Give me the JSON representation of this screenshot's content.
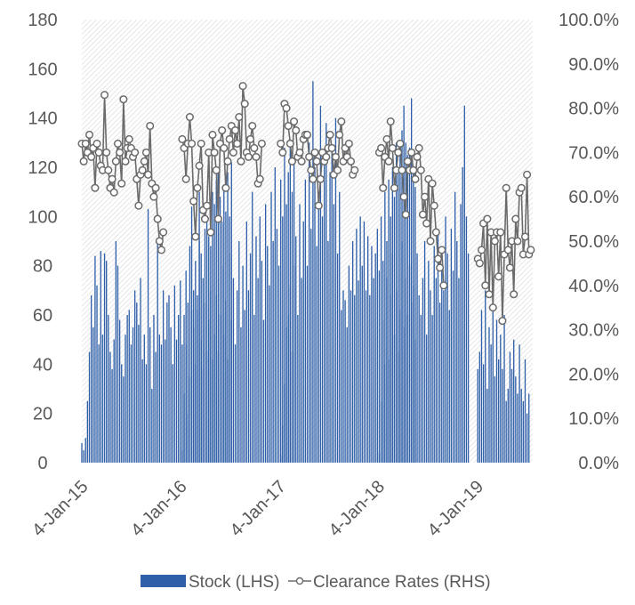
{
  "chart_data": {
    "type": "bar+line",
    "title": "",
    "x_tick_labels": [
      "4-Jan-15",
      "4-Jan-16",
      "4-Jan-17",
      "4-Jan-18",
      "4-Jan-19"
    ],
    "x_range": [
      "2015-01-04",
      "2019-07-28"
    ],
    "y_left": {
      "min": 0,
      "max": 180,
      "step": 20,
      "ticks": [
        "0",
        "20",
        "40",
        "60",
        "80",
        "100",
        "120",
        "140",
        "160",
        "180"
      ]
    },
    "y_right": {
      "min": 0,
      "max": 1.0,
      "step": 0.1,
      "ticks": [
        "0.0%",
        "10.0%",
        "20.0%",
        "30.0%",
        "40.0%",
        "50.0%",
        "60.0%",
        "70.0%",
        "80.0%",
        "90.0%",
        "100.0%"
      ]
    },
    "legend": {
      "placement": "bottom",
      "stock_label": "Stock (LHS)",
      "clearance_label": "Clearance Rates (RHS)"
    },
    "colors": {
      "stock": "#2e5fa8",
      "clearance_line": "#6b6b6b",
      "marker_fill": "#ffffff",
      "marker_stroke": "#6b6b6b",
      "hatch": "#d7d7d7",
      "tick_text": "#595959"
    },
    "series": [
      {
        "name": "Stock (LHS)",
        "axis": "left",
        "type": "bar",
        "segments": [
          {
            "start": "2015-01-04",
            "values": [
              8,
              5,
              10,
              25,
              45,
              68,
              55,
              84,
              72,
              48,
              86,
              52,
              85,
              82,
              60,
              45,
              38,
              50,
              90,
              80,
              58,
              40,
              35,
              52,
              60,
              62,
              48,
              55,
              70,
              65,
              56,
              75,
              42,
              52,
              40,
              103,
              55,
              30,
              60,
              45,
              90,
              52,
              48,
              70,
              50,
              65,
              68,
              55,
              40,
              72,
              50,
              60,
              74,
              48,
              60,
              78,
              65,
              88,
              62,
              70,
              82,
              68,
              90,
              85,
              75,
              95,
              100,
              92,
              88,
              110,
              105,
              115,
              120,
              108,
              98,
              112,
              102,
              118,
              100,
              122
            ]
          },
          {
            "start": "2016-01-10",
            "values": [
              5,
              28,
              48,
              20,
              35,
              104,
              55,
              40,
              62,
              110,
              50,
              38,
              65,
              45,
              58,
              70,
              42,
              52,
              68,
              45,
              60,
              80,
              52,
              66,
              42,
              85,
              58,
              75,
              48,
              70,
              90,
              55,
              80,
              62,
              98,
              70,
              85,
              110,
              60,
              92,
              75,
              100,
              82,
              58,
              105,
              88,
              72,
              110,
              90,
              120,
              95,
              80,
              115,
              100,
              128,
              105,
              118,
              130,
              110,
              124
            ]
          },
          {
            "start": "2017-01-08",
            "values": [
              3,
              15,
              32,
              55,
              60,
              72,
              45,
              80,
              92,
              60,
              105,
              75,
              98,
              115,
              80,
              130,
              95,
              155,
              120,
              88,
              110,
              145,
              100,
              125,
              138,
              90,
              118,
              128,
              105,
              140,
              85,
              110,
              62,
              70,
              66,
              55,
              80,
              70,
              90,
              68,
              95,
              74,
              100,
              80,
              98,
              70,
              92,
              68,
              88,
              75,
              85,
              95,
              78,
              100,
              82,
              110,
              90,
              115,
              100,
              120,
              108,
              130,
              118,
              125,
              135,
              145,
              130,
              125,
              128,
              148,
              120,
              112
            ]
          },
          {
            "start": "2018-01-07",
            "values": [
              4,
              25,
              58,
              40,
              75,
              42,
              68,
              85,
              52,
              70,
              45,
              62,
              90,
              55,
              75,
              60,
              80,
              65,
              72,
              50,
              85,
              68,
              60,
              75,
              90,
              52,
              82,
              70,
              60,
              88,
              75,
              95,
              65,
              80,
              70,
              100,
              85,
              62,
              95,
              78,
              110,
              90,
              75,
              105,
              120,
              145,
              100,
              85
            ]
          },
          {
            "start": "2019-01-06",
            "values": [
              38,
              45,
              62,
              40,
              70,
              30,
              55,
              48,
              65,
              35,
              58,
              42,
              52,
              38,
              60,
              25,
              30,
              45,
              38,
              50,
              35,
              28,
              48,
              30,
              25,
              42,
              20,
              28
            ]
          }
        ]
      },
      {
        "name": "Clearance Rates (RHS)",
        "axis": "right",
        "type": "line",
        "segments": [
          {
            "start": "2015-01-04",
            "values": [
              0.72,
              0.68,
              0.72,
              0.7,
              0.74,
              0.69,
              0.71,
              0.62,
              0.72,
              0.7,
              0.67,
              0.66,
              0.83,
              0.7,
              0.66,
              0.62,
              0.64,
              0.61,
              0.68,
              0.72,
              0.7,
              0.63,
              0.82,
              0.68,
              0.71,
              0.73,
              0.71,
              0.69,
              0.7,
              0.64,
              0.58,
              0.65,
              0.66,
              0.68,
              0.7,
              0.65,
              0.76,
              0.63,
              0.6,
              0.62,
              0.55,
              0.5,
              0.48,
              0.52
            ]
          },
          {
            "start": "2016-01-10",
            "values": [
              0.73,
              0.71,
              0.64,
              0.72,
              0.78,
              0.72,
              0.59,
              0.51,
              0.62,
              0.67,
              0.72,
              0.57,
              0.55,
              0.58,
              0.7,
              0.52,
              0.74,
              0.7,
              0.66,
              0.55,
              0.72,
              0.75,
              0.71,
              0.62,
              0.68,
              0.73,
              0.76,
              0.7,
              0.75,
              0.72,
              0.78,
              0.68,
              0.85,
              0.81,
              0.7,
              0.69,
              0.73,
              0.76,
              0.71,
              0.69,
              0.63,
              0.64,
              0.72
            ]
          },
          {
            "start": "2017-01-08",
            "values": [
              0.72,
              0.7,
              0.81,
              0.8,
              0.76,
              0.72,
              0.68,
              0.77,
              0.75,
              0.69,
              0.7,
              0.68,
              0.73,
              0.74,
              0.74,
              0.69,
              0.66,
              0.64,
              0.7,
              0.68,
              0.58,
              0.64,
              0.7,
              0.68,
              0.69,
              0.71,
              0.74,
              0.71,
              0.65,
              0.69,
              0.66,
              0.74,
              0.77,
              0.68,
              0.71,
              0.69,
              0.72,
              0.68,
              0.65,
              0.66
            ]
          },
          {
            "start": "2018-01-07",
            "values": [
              0.7,
              0.71,
              0.62,
              0.69,
              0.73,
              0.68,
              0.77,
              0.71,
              0.62,
              0.66,
              0.7,
              0.72,
              0.66,
              0.6,
              0.56,
              0.68,
              0.66,
              0.7,
              0.66,
              0.64,
              0.69,
              0.71,
              0.66,
              0.56,
              0.6,
              0.54,
              0.64,
              0.5,
              0.63,
              0.58,
              0.52,
              0.46,
              0.44,
              0.48,
              0.4
            ]
          },
          {
            "start": "2019-01-06",
            "values": [
              0.46,
              0.45,
              0.48,
              0.54,
              0.4,
              0.55,
              0.38,
              0.52,
              0.35,
              0.5,
              0.52,
              0.42,
              0.52,
              0.32,
              0.47,
              0.62,
              0.48,
              0.44,
              0.5,
              0.38,
              0.55,
              0.5,
              0.61,
              0.62,
              0.47,
              0.51,
              0.65,
              0.47,
              0.48
            ]
          }
        ]
      }
    ]
  }
}
